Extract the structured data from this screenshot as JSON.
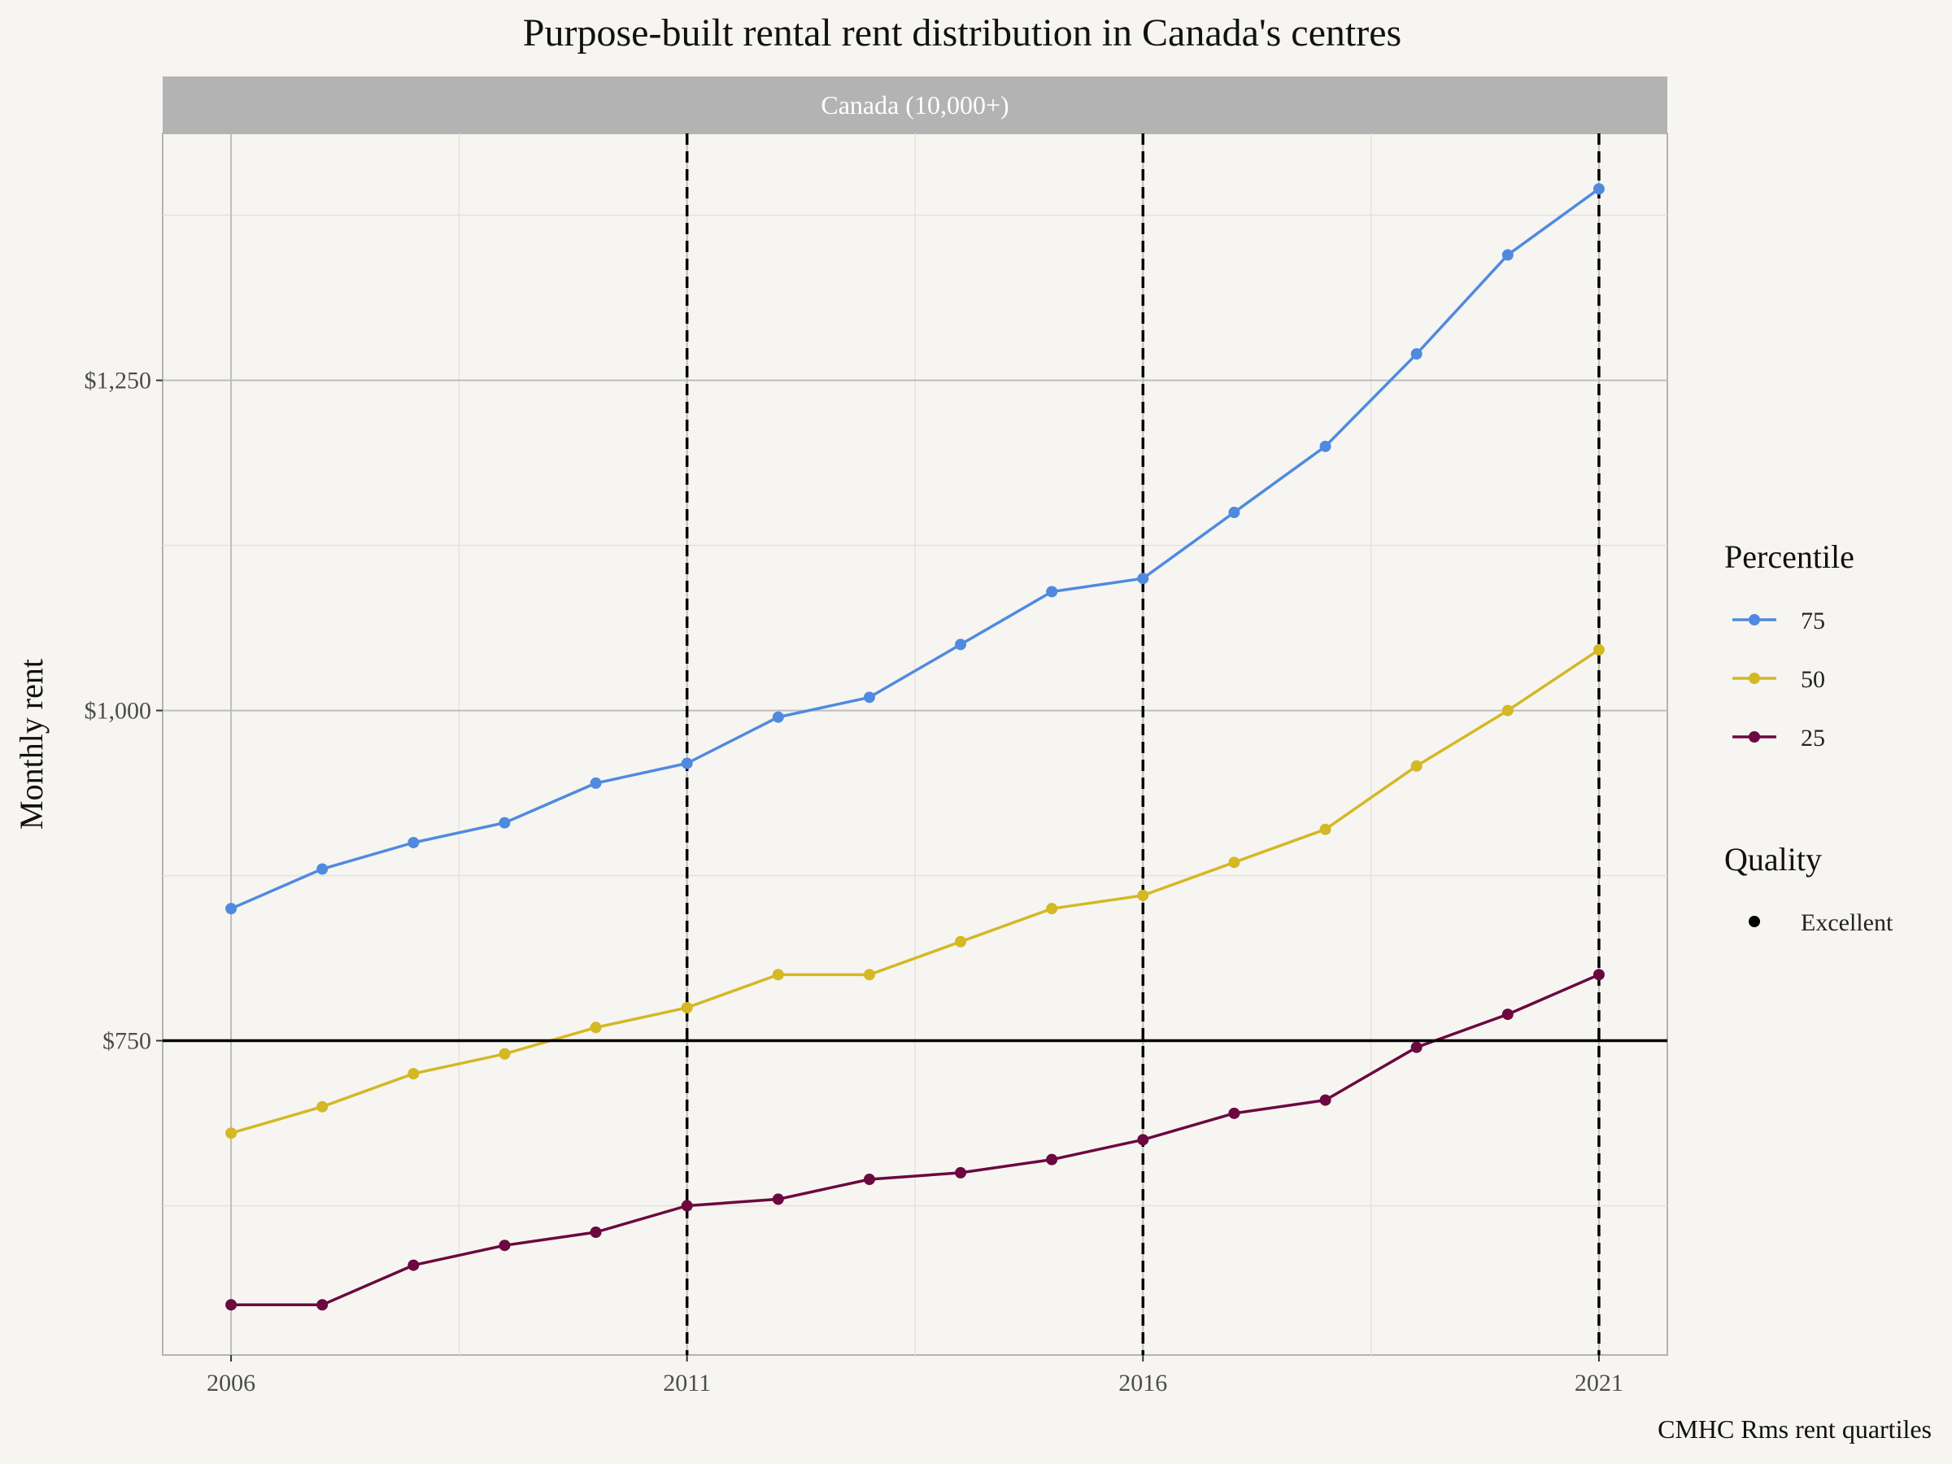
{
  "title": "Purpose-built rental rent distribution in Canada's centres",
  "caption": "CMHC Rms rent quartiles",
  "colors": {
    "background": "#f7f5f1",
    "strip": "#b3b3b3",
    "p75": "#4f8ae0",
    "p50": "#d4b824",
    "p25": "#6b0840"
  },
  "chart_data": {
    "type": "line",
    "panel_label": "Canada (10,000+)",
    "xlabel": "",
    "ylabel": "Monthly rent",
    "x": [
      2006,
      2007,
      2008,
      2009,
      2010,
      2011,
      2012,
      2013,
      2014,
      2015,
      2016,
      2017,
      2018,
      2019,
      2020,
      2021
    ],
    "xlim": [
      2005.25,
      2021.75
    ],
    "ylim": [
      512,
      1437
    ],
    "x_ticks": [
      2006,
      2011,
      2016,
      2021
    ],
    "x_tick_labels": [
      "2006",
      "2011",
      "2016",
      "2021"
    ],
    "y_ticks": [
      750,
      1000,
      1250
    ],
    "y_tick_labels": [
      "$750",
      "$1,000",
      "$1,250"
    ],
    "grid": true,
    "series": [
      {
        "name": "75",
        "color_key": "p75",
        "values": [
          850,
          880,
          900,
          915,
          945,
          960,
          995,
          1010,
          1050,
          1090,
          1100,
          1150,
          1200,
          1270,
          1345,
          1395
        ]
      },
      {
        "name": "50",
        "color_key": "p50",
        "values": [
          680,
          700,
          725,
          740,
          760,
          775,
          800,
          800,
          825,
          850,
          860,
          885,
          910,
          958,
          1000,
          1046
        ]
      },
      {
        "name": "25",
        "color_key": "p25",
        "values": [
          550,
          550,
          580,
          595,
          605,
          625,
          630,
          645,
          650,
          660,
          675,
          695,
          705,
          745,
          770,
          800
        ]
      }
    ],
    "hline": {
      "y": 750
    },
    "vlines": [
      2011,
      2016,
      2021
    ],
    "legend": {
      "placement": "right",
      "percentile_title": "Percentile",
      "quality_title": "Quality",
      "quality_items": [
        "Excellent"
      ]
    }
  }
}
